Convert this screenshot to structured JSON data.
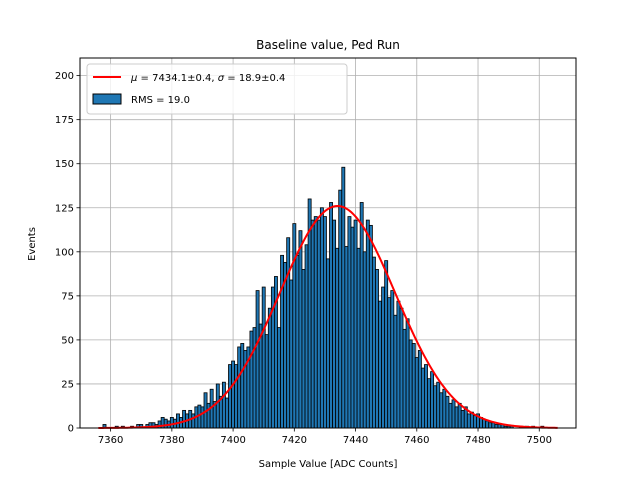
{
  "chart_data": {
    "type": "bar",
    "title": "Baseline value, Ped Run",
    "xlabel": "Sample Value [ADC Counts]",
    "ylabel": "Events",
    "xlim": [
      7350,
      7512
    ],
    "ylim": [
      0,
      210
    ],
    "xticks": [
      7360,
      7380,
      7400,
      7420,
      7440,
      7460,
      7480,
      7500
    ],
    "yticks": [
      0,
      25,
      50,
      75,
      100,
      125,
      150,
      175,
      200
    ],
    "grid": true,
    "legend_placement": "top-left",
    "bin_width": 1,
    "histogram": {
      "name": "RMS = 19.0",
      "color": "#1f77b4",
      "edge_color": "#000000",
      "x": [
        7358,
        7362,
        7364,
        7367,
        7369,
        7370,
        7372,
        7373,
        7374,
        7375,
        7376,
        7377,
        7378,
        7379,
        7380,
        7381,
        7382,
        7383,
        7384,
        7385,
        7386,
        7387,
        7388,
        7389,
        7390,
        7391,
        7392,
        7393,
        7394,
        7395,
        7396,
        7397,
        7398,
        7399,
        7400,
        7401,
        7402,
        7403,
        7404,
        7405,
        7406,
        7407,
        7408,
        7409,
        7410,
        7411,
        7412,
        7413,
        7414,
        7415,
        7416,
        7417,
        7418,
        7419,
        7420,
        7421,
        7422,
        7423,
        7424,
        7425,
        7426,
        7427,
        7428,
        7429,
        7430,
        7431,
        7432,
        7433,
        7434,
        7435,
        7436,
        7437,
        7438,
        7439,
        7440,
        7441,
        7442,
        7443,
        7444,
        7445,
        7446,
        7447,
        7448,
        7449,
        7450,
        7451,
        7452,
        7453,
        7454,
        7455,
        7456,
        7457,
        7458,
        7459,
        7460,
        7461,
        7462,
        7463,
        7464,
        7465,
        7466,
        7467,
        7468,
        7469,
        7470,
        7471,
        7472,
        7473,
        7474,
        7475,
        7476,
        7477,
        7478,
        7479,
        7480,
        7481,
        7482,
        7483,
        7484,
        7485,
        7486,
        7487,
        7488,
        7489,
        7490,
        7491,
        7494,
        7496,
        7498,
        7501
      ],
      "values": [
        2,
        1,
        1,
        1,
        2,
        2,
        2,
        3,
        3,
        2,
        4,
        6,
        5,
        4,
        6,
        5,
        8,
        6,
        10,
        8,
        10,
        8,
        12,
        13,
        12,
        20,
        14,
        22,
        15,
        25,
        18,
        26,
        17,
        36,
        38,
        36,
        46,
        48,
        44,
        46,
        55,
        57,
        78,
        59,
        80,
        53,
        68,
        80,
        86,
        57,
        98,
        94,
        108,
        84,
        116,
        98,
        112,
        90,
        104,
        130,
        118,
        120,
        118,
        125,
        120,
        96,
        128,
        118,
        102,
        135,
        148,
        103,
        120,
        114,
        118,
        102,
        128,
        100,
        118,
        115,
        97,
        90,
        72,
        80,
        95,
        74,
        78,
        64,
        72,
        68,
        56,
        62,
        50,
        48,
        40,
        44,
        34,
        36,
        28,
        32,
        24,
        26,
        20,
        22,
        18,
        14,
        16,
        12,
        14,
        10,
        12,
        8,
        9,
        7,
        8,
        6,
        5,
        4,
        3,
        3,
        2,
        2,
        2,
        1,
        1,
        1,
        1,
        1,
        1,
        1
      ]
    },
    "fit": {
      "name_parts": [
        "μ",
        " = 7434.1±0.4, ",
        "σ",
        " = 18.9±0.4"
      ],
      "mu": 7434.1,
      "sigma": 18.9,
      "amplitude": 126,
      "x_range": [
        7356,
        7506
      ],
      "color": "#ff0000"
    }
  }
}
